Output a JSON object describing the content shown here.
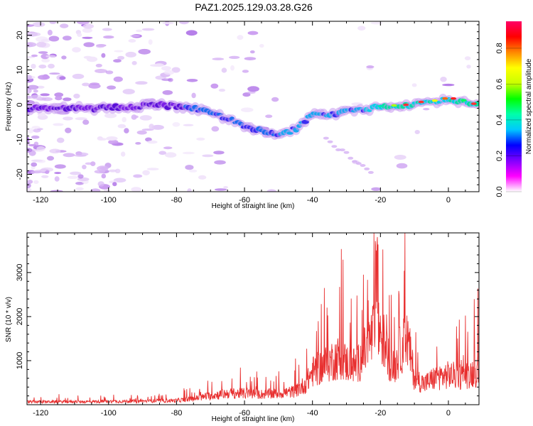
{
  "title": "PAZ1.2025.129.03.28.G26",
  "chart_data": [
    {
      "type": "heatmap",
      "xlabel": "Height of straight line (km)",
      "ylabel": "Frequency (Hz)",
      "xlim": [
        -124,
        9
      ],
      "ylim": [
        -25,
        24
      ],
      "xticks": [
        -120,
        -100,
        -80,
        -60,
        -40,
        -20,
        0
      ],
      "yticks": [
        -20,
        -10,
        0,
        10,
        20
      ],
      "ridge": [
        {
          "x": -120,
          "y": -1
        },
        {
          "x": -100,
          "y": -1
        },
        {
          "x": -85,
          "y": 0
        },
        {
          "x": -75,
          "y": -1
        },
        {
          "x": -70,
          "y": -2
        },
        {
          "x": -65,
          "y": -4
        },
        {
          "x": -60,
          "y": -6
        },
        {
          "x": -55,
          "y": -7.5
        },
        {
          "x": -50,
          "y": -9
        },
        {
          "x": -45,
          "y": -7
        },
        {
          "x": -40,
          "y": -3
        },
        {
          "x": -35,
          "y": -3
        },
        {
          "x": -30,
          "y": -2
        },
        {
          "x": -25,
          "y": -1.5
        },
        {
          "x": -20,
          "y": -0.5
        },
        {
          "x": -10,
          "y": 0
        },
        {
          "x": 0,
          "y": 1.5
        },
        {
          "x": 9,
          "y": 0
        }
      ],
      "colorbar": {
        "label": "Normalized spectral amplitude",
        "range": [
          0,
          0.95
        ],
        "ticks": [
          "0.0",
          "0.2",
          "0.4",
          "0.6",
          "0.8"
        ],
        "colors": [
          "#ffffff",
          "#ff00ff",
          "#8000ff",
          "#0000ff",
          "#00c8ff",
          "#00ffaa",
          "#00ff00",
          "#c8ff00",
          "#ffff00",
          "#ff8800",
          "#ff0000",
          "#ff0066"
        ]
      }
    },
    {
      "type": "line",
      "xlabel": "Height of straight line (km)",
      "ylabel": "SNR (10 * v/v)",
      "xlim": [
        -124,
        9
      ],
      "ylim": [
        0,
        3900
      ],
      "xticks": [
        -120,
        -100,
        -80,
        -60,
        -40,
        -20,
        0
      ],
      "yticks": [
        1000,
        2000,
        3000
      ],
      "line_color": "#e83030",
      "envelope": [
        {
          "x": -124,
          "y": 100
        },
        {
          "x": -110,
          "y": 100
        },
        {
          "x": -100,
          "y": 110
        },
        {
          "x": -90,
          "y": 120
        },
        {
          "x": -80,
          "y": 140
        },
        {
          "x": -75,
          "y": 200
        },
        {
          "x": -70,
          "y": 300
        },
        {
          "x": -65,
          "y": 380
        },
        {
          "x": -60,
          "y": 380
        },
        {
          "x": -55,
          "y": 350
        },
        {
          "x": -50,
          "y": 380
        },
        {
          "x": -45,
          "y": 450
        },
        {
          "x": -42,
          "y": 700
        },
        {
          "x": -40,
          "y": 1100
        },
        {
          "x": -37,
          "y": 1300
        },
        {
          "x": -34,
          "y": 1500
        },
        {
          "x": -32,
          "y": 1600
        },
        {
          "x": -30,
          "y": 1400
        },
        {
          "x": -27,
          "y": 1300
        },
        {
          "x": -25,
          "y": 1700
        },
        {
          "x": -22,
          "y": 2400
        },
        {
          "x": -20,
          "y": 2500
        },
        {
          "x": -18,
          "y": 1700
        },
        {
          "x": -16,
          "y": 1200
        },
        {
          "x": -14,
          "y": 1900
        },
        {
          "x": -12,
          "y": 2200
        },
        {
          "x": -10,
          "y": 900
        },
        {
          "x": -7,
          "y": 700
        },
        {
          "x": -4,
          "y": 900
        },
        {
          "x": 0,
          "y": 1000
        },
        {
          "x": 4,
          "y": 950
        },
        {
          "x": 9,
          "y": 1150
        }
      ]
    }
  ]
}
